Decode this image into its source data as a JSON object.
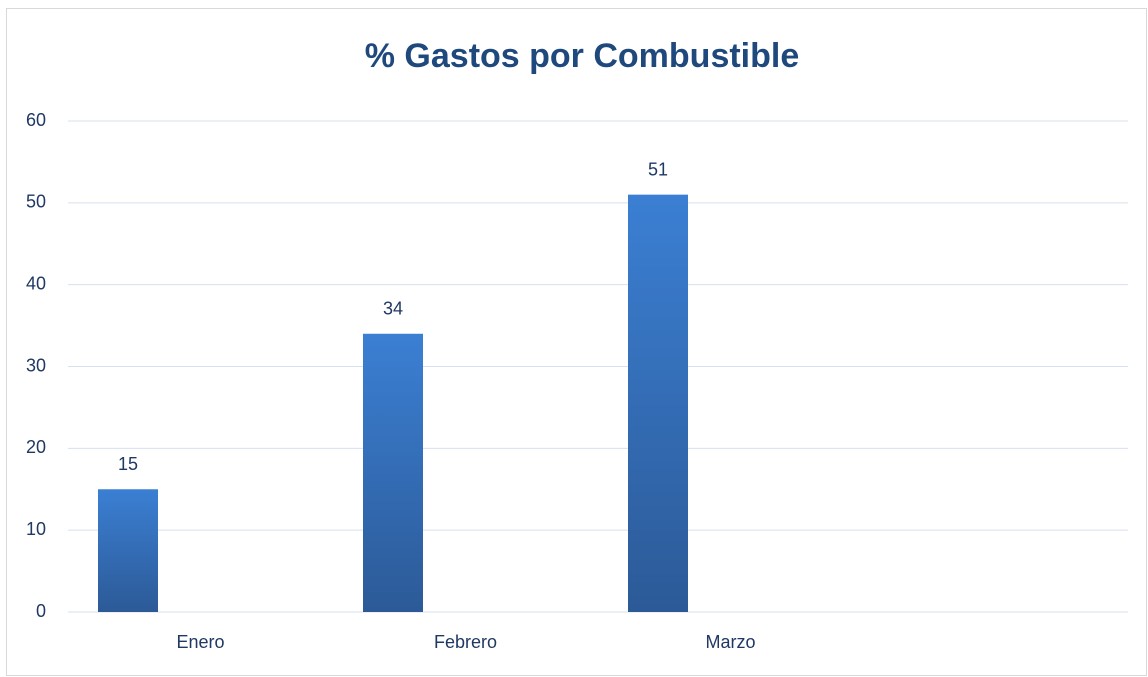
{
  "chart_data": {
    "type": "bar",
    "title": "% Gastos por Combustible",
    "categories": [
      "Enero",
      "Febrero",
      "Marzo",
      null
    ],
    "values": [
      15,
      34,
      51,
      null
    ],
    "color": "#3b7fd3",
    "ylim": [
      0,
      60
    ],
    "yticks": [
      0,
      10,
      20,
      30,
      40,
      50,
      60
    ],
    "grid": true
  }
}
